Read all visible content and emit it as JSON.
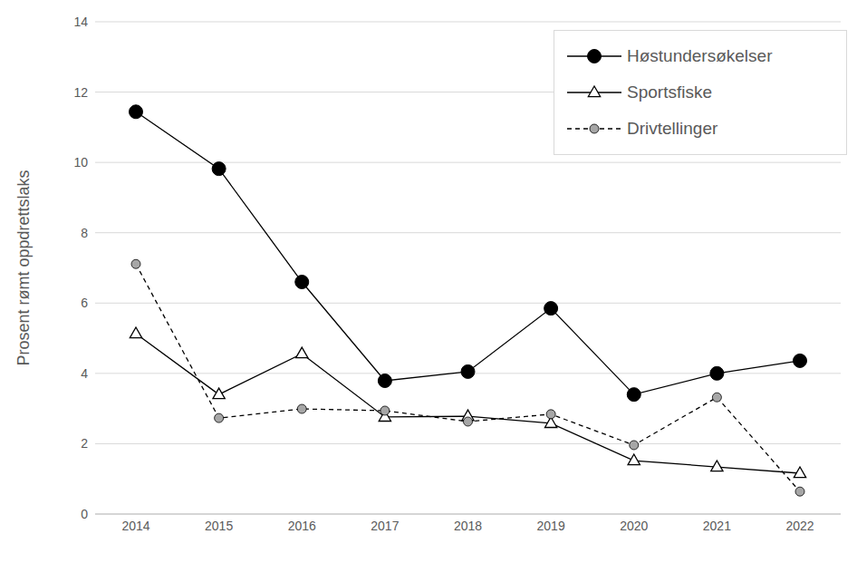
{
  "chart_data": {
    "type": "line",
    "y_label": "Prosent rømt oppdrettslaks",
    "categories": [
      "2014",
      "2015",
      "2016",
      "2017",
      "2018",
      "2019",
      "2020",
      "2021",
      "2022"
    ],
    "series": [
      {
        "name": "Høstundersøkelser",
        "color": "#000000",
        "marker": "circle",
        "line_style": "solid",
        "values": [
          11.44,
          9.82,
          6.6,
          3.79,
          4.05,
          5.85,
          3.4,
          4.0,
          4.36
        ]
      },
      {
        "name": "Sportsfiske",
        "color": "#000000",
        "marker": "open_triangle",
        "line_style": "solid",
        "values": [
          5.13,
          3.4,
          4.56,
          2.76,
          2.78,
          2.58,
          1.52,
          1.34,
          1.16
        ]
      },
      {
        "name": "Drivtellinger",
        "color": "#000000",
        "marker": "grey_circle",
        "line_style": "dashed",
        "values": [
          7.11,
          2.73,
          2.99,
          2.94,
          2.63,
          2.84,
          1.96,
          3.32,
          0.64
        ]
      }
    ],
    "ylim": [
      0,
      14
    ],
    "yticks": [
      0,
      2,
      4,
      6,
      8,
      10,
      12,
      14
    ],
    "grid": true,
    "legend": "top-right"
  }
}
